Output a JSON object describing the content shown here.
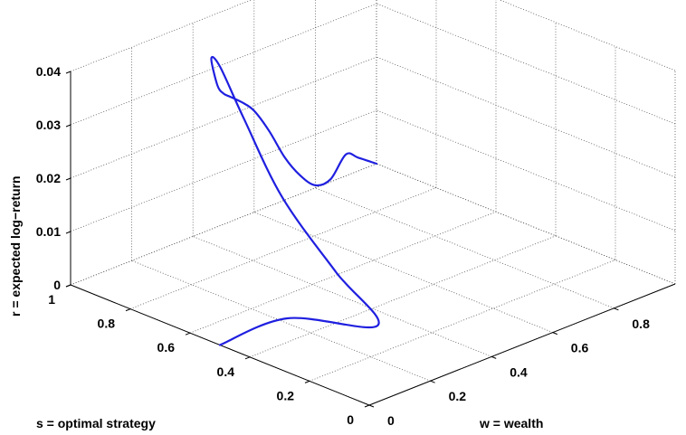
{
  "chart_data": {
    "type": "line",
    "projection": "3d",
    "title": "",
    "xlabel": "w = wealth",
    "ylabel": "s = optimal strategy",
    "zlabel": "r = expected log−return",
    "xlim": [
      0,
      1
    ],
    "ylim": [
      0,
      1
    ],
    "zlim": [
      0,
      0.04
    ],
    "grid": true,
    "x_ticks": [
      "0",
      "0.2",
      "0.4",
      "0.6",
      "0.8"
    ],
    "y_ticks": [
      "0",
      "0.2",
      "0.4",
      "0.6",
      "0.8",
      "1"
    ],
    "z_ticks": [
      "0",
      "0.01",
      "0.02",
      "0.03",
      "0.04"
    ],
    "line_color": "#1f1fe0",
    "series": [
      {
        "points": [
          {
            "w": 0.0,
            "s": 0.5,
            "r": 0.0
          },
          {
            "w": 0.22,
            "s": 0.5,
            "r": 0.0
          },
          {
            "w": 0.34,
            "s": 0.32,
            "r": 0.0
          },
          {
            "w": 0.38,
            "s": 0.5,
            "r": 0.005
          },
          {
            "w": 0.4,
            "s": 0.7,
            "r": 0.014
          },
          {
            "w": 0.42,
            "s": 0.85,
            "r": 0.025
          },
          {
            "w": 0.44,
            "s": 0.95,
            "r": 0.032
          },
          {
            "w": 0.46,
            "s": 1.0,
            "r": 0.032
          },
          {
            "w": 0.48,
            "s": 1.0,
            "r": 0.0265
          },
          {
            "w": 0.5,
            "s": 1.0,
            "r": 0.0245
          },
          {
            "w": 0.52,
            "s": 1.0,
            "r": 0.0235
          },
          {
            "w": 0.56,
            "s": 1.0,
            "r": 0.0215
          },
          {
            "w": 0.6,
            "s": 1.0,
            "r": 0.019
          },
          {
            "w": 0.65,
            "s": 1.0,
            "r": 0.014
          },
          {
            "w": 0.7,
            "s": 1.0,
            "r": 0.008
          },
          {
            "w": 0.75,
            "s": 1.0,
            "r": 0.0035
          },
          {
            "w": 0.8,
            "s": 1.0,
            "r": 0.0005
          },
          {
            "w": 0.85,
            "s": 1.0,
            "r": 0.0005
          },
          {
            "w": 0.9,
            "s": 1.0,
            "r": 0.004
          },
          {
            "w": 0.94,
            "s": 1.0,
            "r": 0.0025
          },
          {
            "w": 1.0,
            "s": 1.0,
            "r": 0.0
          }
        ]
      }
    ]
  }
}
